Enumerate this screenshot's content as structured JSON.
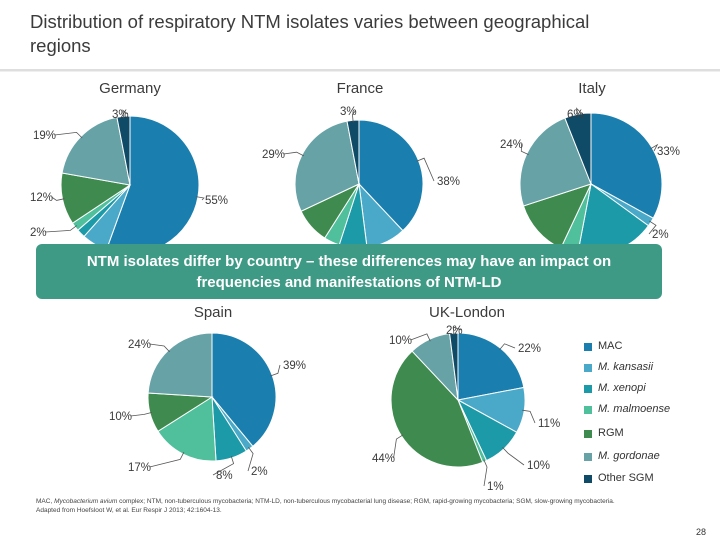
{
  "slide_title": "Distribution of respiratory NTM isolates varies between geographical regions",
  "banner_text": "NTM isolates differ by country – these differences may have an impact on frequencies and manifestations of NTM-LD",
  "legend": [
    {
      "label": "MAC",
      "italic": false,
      "color": "#1a7fae"
    },
    {
      "label": "M. kansasii",
      "italic": true,
      "color": "#4aa9c8"
    },
    {
      "label": "M. xenopi",
      "italic": true,
      "color": "#1c9aa8"
    },
    {
      "label": "M. malmoense",
      "italic": true,
      "color": "#4fbf9c"
    },
    {
      "label": "RGM",
      "italic": false,
      "color": "#3f8a4e"
    },
    {
      "label": "M. gordonae",
      "italic": true,
      "color": "#66a2a6"
    },
    {
      "label": "Other SGM",
      "italic": false,
      "color": "#0f4a66"
    }
  ],
  "footnote": {
    "abbrev_prefix": "MAC, ",
    "abbrev_italic": "Mycobacterium avium",
    "abbrev_rest": " complex; NTM, non-tuberculous mycobacteria; NTM-LD, non-tuberculous mycobacterial lung disease; RGM, rapid-growing mycobacteria; SGM, slow-growing mycobacteria.",
    "source": "Adapted from Hoefsloot W, et al. Eur Respir J 2013; 42:1604-13."
  },
  "page_number": "28",
  "chart_data": [
    {
      "type": "pie",
      "title": "Germany",
      "categories": [
        "MAC",
        "M. kansasii",
        "M. xenopi",
        "M. malmoense",
        "RGM",
        "M. gordonae",
        "Other SGM"
      ],
      "values": [
        55,
        6,
        2,
        2,
        12,
        19,
        3
      ],
      "labels": [
        "55%",
        "",
        "",
        "2%",
        "12%",
        "19%",
        "3%"
      ]
    },
    {
      "type": "pie",
      "title": "France",
      "categories": [
        "MAC",
        "M. kansasii",
        "M. xenopi",
        "M. malmoense",
        "RGM",
        "M. gordonae",
        "Other SGM"
      ],
      "values": [
        38,
        10,
        7,
        4,
        9,
        29,
        3
      ],
      "labels": [
        "38%",
        "",
        "",
        "",
        "",
        "29%",
        "3%"
      ]
    },
    {
      "type": "pie",
      "title": "Italy",
      "categories": [
        "MAC",
        "M. kansasii",
        "M. xenopi",
        "M. malmoense",
        "RGM",
        "M. gordonae",
        "Other SGM"
      ],
      "values": [
        33,
        2,
        18,
        4,
        13,
        24,
        6
      ],
      "labels": [
        "33%",
        "2%",
        "",
        "",
        "",
        "24%",
        "6%"
      ]
    },
    {
      "type": "pie",
      "title": "Spain",
      "categories": [
        "MAC",
        "M. kansasii",
        "M. xenopi",
        "M. malmoense",
        "RGM",
        "M. gordonae",
        "Other SGM"
      ],
      "values": [
        39,
        2,
        8,
        17,
        10,
        24,
        0
      ],
      "labels": [
        "39%",
        "2%",
        "8%",
        "17%",
        "10%",
        "24%",
        ""
      ]
    },
    {
      "type": "pie",
      "title": "UK-London",
      "categories": [
        "MAC",
        "M. kansasii",
        "M. xenopi",
        "M. malmoense",
        "RGM",
        "M. gordonae",
        "Other SGM"
      ],
      "values": [
        22,
        11,
        10,
        1,
        44,
        10,
        2
      ],
      "labels": [
        "22%",
        "11%",
        "10%",
        "1%",
        "44%",
        "10%",
        "2%"
      ]
    }
  ]
}
